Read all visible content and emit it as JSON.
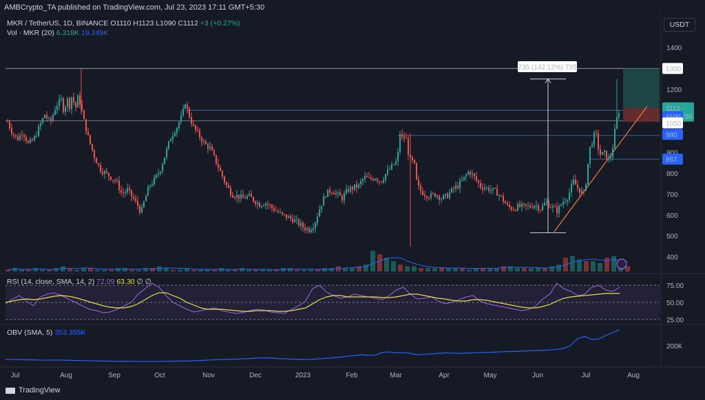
{
  "header": {
    "published": "AMBCrypto_TA published on TradingView.com, Jul 23, 2023 17:11 GMT+5:30"
  },
  "symbol": {
    "pair": "MKR / TetherUS, 1D, BINANCE",
    "ohlc": "O1110 H1123 L1090 C1112",
    "change": "+3 (+0.27%)"
  },
  "volume_legend": {
    "label": "Vol · MKR (20)",
    "v1": "6.318K",
    "v2": "19.249K"
  },
  "rsi_legend": {
    "label": "RSI (14, close, SMA, 14, 2)",
    "rsi": "72.09",
    "sma": "63.30",
    "extra": "∅ ∅"
  },
  "obv_legend": {
    "label": "OBV (SMA, 5)",
    "value": "353.355K"
  },
  "currency": "USDT",
  "footer": {
    "brand": "TradingView"
  },
  "colors": {
    "bg": "#161a25",
    "up": "#26a69a",
    "down": "#ef5350",
    "rsi": "#9c6ad9",
    "sma": "#e6e04a",
    "obv": "#2962ff",
    "hline": "#3d5ea8",
    "trend": "#f0813c"
  },
  "chart_data": [
    {
      "type": "candlestick",
      "x": [
        "Jul",
        "Aug",
        "Sep",
        "Oct",
        "Nov",
        "Dec",
        "2023",
        "Feb",
        "Mar",
        "Apr",
        "May",
        "Jun",
        "Jul",
        "Aug"
      ],
      "y_ticks": [
        400,
        500,
        600,
        700,
        800,
        900,
        1000,
        1100,
        1200,
        1300,
        1400
      ],
      "ylim": [
        330,
        1440
      ],
      "close_path": [
        [
          0,
          1030
        ],
        [
          8,
          1060
        ],
        [
          16,
          1000
        ],
        [
          24,
          960
        ],
        [
          32,
          1000
        ],
        [
          40,
          940
        ],
        [
          48,
          960
        ],
        [
          56,
          1020
        ],
        [
          64,
          1080
        ],
        [
          72,
          1040
        ],
        [
          80,
          1120
        ],
        [
          88,
          1150
        ],
        [
          92,
          1090
        ],
        [
          96,
          1160
        ],
        [
          100,
          1120
        ],
        [
          104,
          1180
        ],
        [
          108,
          1100
        ],
        [
          112,
          1160
        ],
        [
          116,
          1130
        ],
        [
          120,
          1060
        ],
        [
          128,
          960
        ],
        [
          136,
          880
        ],
        [
          144,
          820
        ],
        [
          152,
          800
        ],
        [
          160,
          780
        ],
        [
          168,
          760
        ],
        [
          176,
          700
        ],
        [
          184,
          720
        ],
        [
          192,
          680
        ],
        [
          200,
          640
        ],
        [
          204,
          610
        ],
        [
          208,
          660
        ],
        [
          216,
          740
        ],
        [
          224,
          770
        ],
        [
          232,
          820
        ],
        [
          240,
          900
        ],
        [
          248,
          980
        ],
        [
          256,
          1020
        ],
        [
          264,
          1080
        ],
        [
          268,
          1140
        ],
        [
          272,
          1090
        ],
        [
          280,
          1020
        ],
        [
          288,
          980
        ],
        [
          296,
          940
        ],
        [
          304,
          920
        ],
        [
          312,
          860
        ],
        [
          320,
          800
        ],
        [
          328,
          740
        ],
        [
          336,
          700
        ],
        [
          344,
          690
        ],
        [
          352,
          680
        ],
        [
          360,
          690
        ],
        [
          368,
          670
        ],
        [
          376,
          650
        ],
        [
          384,
          660
        ],
        [
          392,
          640
        ],
        [
          400,
          620
        ],
        [
          408,
          600
        ],
        [
          416,
          590
        ],
        [
          424,
          580
        ],
        [
          432,
          560
        ],
        [
          440,
          540
        ],
        [
          448,
          530
        ],
        [
          456,
          560
        ],
        [
          464,
          640
        ],
        [
          472,
          700
        ],
        [
          480,
          720
        ],
        [
          488,
          700
        ],
        [
          496,
          680
        ],
        [
          504,
          720
        ],
        [
          512,
          730
        ],
        [
          520,
          740
        ],
        [
          528,
          780
        ],
        [
          536,
          770
        ],
        [
          544,
          780
        ],
        [
          552,
          760
        ],
        [
          560,
          800
        ],
        [
          568,
          830
        ],
        [
          576,
          860
        ],
        [
          580,
          990
        ],
        [
          584,
          960
        ],
        [
          588,
          980
        ],
        [
          592,
          900
        ],
        [
          596,
          850
        ],
        [
          600,
          860
        ],
        [
          604,
          760
        ],
        [
          608,
          720
        ],
        [
          616,
          700
        ],
        [
          624,
          690
        ],
        [
          632,
          700
        ],
        [
          640,
          680
        ],
        [
          648,
          690
        ],
        [
          656,
          720
        ],
        [
          664,
          740
        ],
        [
          672,
          770
        ],
        [
          680,
          810
        ],
        [
          688,
          780
        ],
        [
          696,
          740
        ],
        [
          704,
          730
        ],
        [
          712,
          720
        ],
        [
          720,
          710
        ],
        [
          728,
          680
        ],
        [
          736,
          640
        ],
        [
          744,
          630
        ],
        [
          752,
          640
        ],
        [
          760,
          640
        ],
        [
          768,
          640
        ],
        [
          776,
          650
        ],
        [
          784,
          630
        ],
        [
          792,
          660
        ],
        [
          800,
          640
        ],
        [
          808,
          620
        ],
        [
          816,
          660
        ],
        [
          824,
          690
        ],
        [
          832,
          760
        ],
        [
          840,
          720
        ],
        [
          848,
          700
        ],
        [
          852,
          820
        ],
        [
          856,
          920
        ],
        [
          860,
          960
        ],
        [
          864,
          1000
        ],
        [
          868,
          920
        ],
        [
          872,
          880
        ],
        [
          876,
          900
        ],
        [
          880,
          880
        ],
        [
          884,
          860
        ],
        [
          888,
          900
        ],
        [
          892,
          1000
        ],
        [
          896,
          1080
        ],
        [
          900,
          1112
        ]
      ],
      "levels": [
        {
          "label": "1300",
          "value": 1300
        },
        {
          "label": "1100",
          "value": 1100
        },
        {
          "label": "1050",
          "value": 1050
        },
        {
          "label": "980",
          "value": 980
        },
        {
          "label": "867",
          "value": 867
        }
      ],
      "last_price": {
        "value": "1112",
        "countdown": "12:18:50"
      },
      "annotations": [
        {
          "text": "735 (142.12%) 735"
        }
      ]
    },
    {
      "type": "bar",
      "title": "Vol · MKR (20)",
      "values_shape": [
        1,
        2,
        1,
        1,
        2,
        1,
        1,
        2,
        3,
        2,
        1,
        2,
        2,
        1,
        1,
        1,
        2,
        2,
        1,
        1,
        2,
        2,
        3,
        2,
        1,
        1,
        2,
        1,
        1,
        1,
        1,
        2,
        1,
        1,
        2,
        1,
        1,
        1,
        1,
        1,
        2,
        2,
        1,
        1,
        1,
        1,
        2,
        2,
        3,
        2,
        2,
        3,
        4,
        12,
        10,
        8,
        6,
        4,
        3,
        3,
        2,
        2,
        2,
        2,
        2,
        2,
        2,
        1,
        2,
        2,
        2,
        2,
        3,
        3,
        2,
        2,
        2,
        2,
        2,
        3,
        4,
        8,
        9,
        7,
        6,
        6,
        5,
        8,
        9,
        4,
        3
      ]
    },
    {
      "type": "line",
      "title": "RSI (14, close, SMA, 14, 2)",
      "y_ticks": [
        25.0,
        50.0,
        75.0
      ],
      "ylim": [
        20,
        90
      ],
      "rsi": [
        48,
        55,
        60,
        52,
        45,
        58,
        62,
        64,
        60,
        55,
        50,
        45,
        40,
        38,
        35,
        36,
        40,
        45,
        50,
        62,
        70,
        78,
        72,
        60,
        50,
        45,
        40,
        36,
        38,
        40,
        42,
        38,
        36,
        34,
        35,
        38,
        40,
        39,
        36,
        35,
        34,
        40,
        45,
        52,
        70,
        75,
        65,
        60,
        56,
        58,
        62,
        60,
        58,
        56,
        54,
        60,
        68,
        72,
        62,
        55,
        56,
        58,
        52,
        48,
        50,
        54,
        58,
        60,
        52,
        48,
        46,
        44,
        42,
        40,
        38,
        40,
        45,
        55,
        62,
        78,
        70,
        66,
        60,
        62,
        72,
        75,
        68,
        66,
        72
      ],
      "sma": [
        50,
        52,
        54,
        55,
        54,
        55,
        57,
        59,
        60,
        59,
        57,
        54,
        51,
        48,
        45,
        43,
        42,
        42,
        44,
        48,
        54,
        60,
        64,
        64,
        60,
        56,
        50,
        46,
        42,
        40,
        40,
        40,
        39,
        38,
        37,
        37,
        38,
        38,
        38,
        37,
        37,
        38,
        40,
        42,
        48,
        54,
        58,
        60,
        60,
        58,
        58,
        58,
        58,
        58,
        57,
        57,
        58,
        60,
        62,
        62,
        60,
        58,
        56,
        55,
        53,
        52,
        52,
        54,
        54,
        53,
        51,
        49,
        47,
        45,
        43,
        42,
        42,
        44,
        47,
        52,
        56,
        58,
        59,
        60,
        61,
        62,
        63,
        63,
        63
      ]
    },
    {
      "type": "line",
      "title": "OBV (SMA, 5)",
      "y_ticks": [
        "200K"
      ],
      "obv": [
        0.5,
        0.48,
        0.47,
        0.45,
        0.44,
        0.42,
        0.41,
        0.43,
        0.42,
        0.4,
        0.38,
        0.36,
        0.35,
        0.33,
        0.32,
        0.31,
        0.3,
        0.31,
        0.3,
        0.29,
        0.28,
        0.28,
        0.29,
        0.3,
        0.31,
        0.32,
        0.33,
        0.35,
        0.38,
        0.42,
        0.45,
        0.48,
        0.5,
        0.52,
        0.55,
        0.58,
        0.62,
        0.65,
        0.63,
        0.58,
        0.55,
        0.52,
        0.5,
        0.48,
        0.5,
        0.55,
        0.6,
        0.66,
        0.72,
        0.8,
        0.88,
        0.95,
        0.9,
        0.92,
        1.2,
        1.25,
        1.15,
        1.18,
        1.1,
        0.95,
        1.0,
        1.05,
        1.1,
        1.15,
        1.12,
        1.1,
        1.12,
        1.15,
        1.18,
        1.2,
        1.22,
        1.25,
        1.28,
        1.3,
        1.32,
        1.35,
        1.38,
        1.4,
        1.45,
        1.5,
        1.6,
        1.9,
        2.6,
        2.8,
        2.5,
        2.55,
        2.9,
        3.2,
        3.5
      ]
    }
  ]
}
